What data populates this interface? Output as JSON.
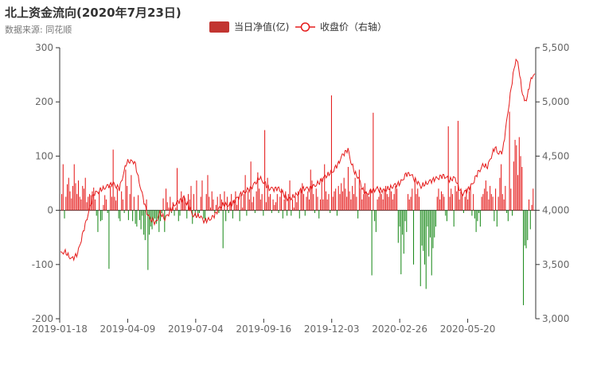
{
  "page": {
    "title": "北上资金流向(2020年7月23日)",
    "subtitle": "数据来源: 同花顺"
  },
  "colors": {
    "positive": "#e51b1b",
    "negative": "#1e8c1e",
    "price_line": "#e51b1b",
    "legend_bar": "#c23531"
  },
  "chart_data": {
    "type": "bar",
    "title": "北上资金流向(2020年7月23日)",
    "subtitle": "数据来源: 同花顺",
    "legend": {
      "position": "top-center"
    },
    "grid": false,
    "x_ticks": [
      "2019-01-18",
      "2019-04-09",
      "2019-07-04",
      "2019-09-16",
      "2019-12-03",
      "2020-02-26",
      "2020-05-20"
    ],
    "y_left": {
      "range": [
        -200,
        300
      ],
      "ticks": [
        -200,
        -100,
        0,
        100,
        200,
        300
      ]
    },
    "y_right": {
      "range": [
        3000,
        5500
      ],
      "ticks": [
        "3,000",
        "3,500",
        "4,000",
        "4,500",
        "5,000",
        "5,500"
      ]
    },
    "series": [
      {
        "name": "当日净值(亿)",
        "type": "bar",
        "axis": "left",
        "values": [
          30,
          85,
          -15,
          25,
          48,
          60,
          35,
          22,
          45,
          85,
          50,
          30,
          55,
          25,
          20,
          45,
          40,
          60,
          15,
          25,
          30,
          28,
          35,
          42,
          20,
          -10,
          -40,
          35,
          -20,
          -18,
          10,
          28,
          20,
          -5,
          -108,
          45,
          25,
          112,
          25,
          18,
          40,
          -15,
          -20,
          35,
          20,
          -5,
          75,
          45,
          -18,
          30,
          65,
          -20,
          25,
          -25,
          -30,
          28,
          -18,
          -35,
          -10,
          -45,
          -55,
          20,
          -110,
          -45,
          -30,
          -35,
          -20,
          -15,
          -25,
          -15,
          -40,
          -20,
          -5,
          22,
          -40,
          40,
          15,
          5,
          25,
          -5,
          15,
          -10,
          5,
          78,
          -20,
          -10,
          35,
          20,
          25,
          15,
          -15,
          30,
          20,
          45,
          -25,
          30,
          -10,
          55,
          -10,
          -5,
          25,
          55,
          -15,
          -20,
          30,
          65,
          25,
          5,
          35,
          20,
          -5,
          10,
          25,
          -5,
          30,
          20,
          -70,
          35,
          -20,
          25,
          -5,
          15,
          30,
          -15,
          20,
          35,
          10,
          25,
          -20,
          28,
          5,
          30,
          65,
          -10,
          35,
          20,
          90,
          15,
          25,
          -5,
          35,
          70,
          40,
          20,
          30,
          -10,
          148,
          15,
          60,
          25,
          30,
          -5,
          20,
          10,
          15,
          30,
          -5,
          25,
          40,
          -15,
          20,
          35,
          -10,
          30,
          55,
          -10,
          20,
          5,
          25,
          15,
          35,
          -15,
          40,
          50,
          30,
          -10,
          25,
          35,
          20,
          75,
          55,
          30,
          -5,
          40,
          25,
          -15,
          20,
          60,
          20,
          85,
          35,
          20,
          30,
          -5,
          212,
          25,
          35,
          40,
          -10,
          45,
          30,
          50,
          35,
          60,
          40,
          25,
          80,
          35,
          20,
          45,
          30,
          60,
          25,
          -15,
          75,
          40,
          20,
          30,
          50,
          35,
          30,
          25,
          40,
          -120,
          180,
          -20,
          -40,
          20,
          25,
          35,
          30,
          20,
          40,
          45,
          30,
          25,
          40,
          35,
          20,
          30,
          45,
          40,
          -60,
          -30,
          -118,
          -45,
          -80,
          -20,
          -40,
          30,
          20,
          25,
          40,
          -100,
          55,
          30,
          40,
          25,
          -140,
          -65,
          -75,
          -100,
          -145,
          -30,
          -85,
          -50,
          -120,
          -70,
          -50,
          -30,
          25,
          40,
          20,
          35,
          30,
          25,
          -10,
          -20,
          155,
          25,
          40,
          30,
          -30,
          45,
          35,
          165,
          20,
          35,
          30,
          -5,
          25,
          40,
          20,
          35,
          45,
          -10,
          30,
          -15,
          -40,
          -20,
          -5,
          -30,
          25,
          30,
          40,
          55,
          35,
          20,
          45,
          30,
          25,
          -20,
          40,
          -30,
          25,
          60,
          85,
          30,
          20,
          45,
          -5,
          -20,
          182,
          40,
          -10,
          90,
          130,
          120,
          65,
          135,
          100,
          80,
          -175,
          -65,
          -70,
          -55,
          20,
          -35,
          10,
          40
        ],
        "color_rule": "red when >= 0, green when < 0"
      },
      {
        "name": "收盘价（右轴）",
        "type": "line",
        "axis": "right",
        "anchors": [
          {
            "i": 0,
            "v": 3600
          },
          {
            "i": 4,
            "v": 3620
          },
          {
            "i": 12,
            "v": 3550
          },
          {
            "i": 18,
            "v": 3600
          },
          {
            "i": 27,
            "v": 3900
          },
          {
            "i": 35,
            "v": 4150
          },
          {
            "i": 45,
            "v": 4200
          },
          {
            "i": 55,
            "v": 4250
          },
          {
            "i": 62,
            "v": 4200
          },
          {
            "i": 70,
            "v": 4450
          },
          {
            "i": 78,
            "v": 4450
          },
          {
            "i": 86,
            "v": 4150
          },
          {
            "i": 92,
            "v": 3950
          },
          {
            "i": 100,
            "v": 3880
          },
          {
            "i": 105,
            "v": 3980
          },
          {
            "i": 110,
            "v": 3920
          },
          {
            "i": 120,
            "v": 4050
          },
          {
            "i": 130,
            "v": 4120
          },
          {
            "i": 140,
            "v": 3950
          },
          {
            "i": 146,
            "v": 3950
          },
          {
            "i": 152,
            "v": 3900
          },
          {
            "i": 160,
            "v": 3930
          },
          {
            "i": 170,
            "v": 4050
          },
          {
            "i": 180,
            "v": 4050
          },
          {
            "i": 190,
            "v": 4150
          },
          {
            "i": 200,
            "v": 4200
          },
          {
            "i": 210,
            "v": 4300
          },
          {
            "i": 220,
            "v": 4200
          },
          {
            "i": 230,
            "v": 4200
          },
          {
            "i": 240,
            "v": 4100
          },
          {
            "i": 250,
            "v": 4150
          },
          {
            "i": 255,
            "v": 4200
          },
          {
            "i": 262,
            "v": 4200
          },
          {
            "i": 272,
            "v": 4250
          },
          {
            "i": 280,
            "v": 4320
          },
          {
            "i": 286,
            "v": 4350
          },
          {
            "i": 292,
            "v": 4420
          },
          {
            "i": 298,
            "v": 4520
          },
          {
            "i": 303,
            "v": 4560
          },
          {
            "i": 306,
            "v": 4450
          },
          {
            "i": 310,
            "v": 4350
          },
          {
            "i": 314,
            "v": 4300
          },
          {
            "i": 318,
            "v": 4200
          },
          {
            "i": 322,
            "v": 4150
          },
          {
            "i": 328,
            "v": 4180
          },
          {
            "i": 334,
            "v": 4200
          },
          {
            "i": 340,
            "v": 4180
          },
          {
            "i": 346,
            "v": 4200
          },
          {
            "i": 352,
            "v": 4230
          },
          {
            "i": 358,
            "v": 4250
          },
          {
            "i": 364,
            "v": 4330
          },
          {
            "i": 368,
            "v": 4340
          },
          {
            "i": 374,
            "v": 4280
          },
          {
            "i": 380,
            "v": 4220
          },
          {
            "i": 386,
            "v": 4250
          },
          {
            "i": 392,
            "v": 4280
          },
          {
            "i": 398,
            "v": 4300
          },
          {
            "i": 404,
            "v": 4320
          },
          {
            "i": 410,
            "v": 4280
          },
          {
            "i": 416,
            "v": 4300
          },
          {
            "i": 420,
            "v": 4200
          },
          {
            "i": 424,
            "v": 4150
          },
          {
            "i": 428,
            "v": 4180
          },
          {
            "i": 434,
            "v": 4240
          },
          {
            "i": 440,
            "v": 4350
          },
          {
            "i": 446,
            "v": 4420
          },
          {
            "i": 450,
            "v": 4400
          },
          {
            "i": 454,
            "v": 4500
          },
          {
            "i": 458,
            "v": 4580
          },
          {
            "i": 462,
            "v": 4520
          },
          {
            "i": 466,
            "v": 4550
          },
          {
            "i": 470,
            "v": 4800
          },
          {
            "i": 473,
            "v": 5000
          },
          {
            "i": 477,
            "v": 5250
          },
          {
            "i": 480,
            "v": 5400
          },
          {
            "i": 483,
            "v": 5320
          },
          {
            "i": 486,
            "v": 5120
          },
          {
            "i": 489,
            "v": 5000
          },
          {
            "i": 492,
            "v": 5050
          },
          {
            "i": 495,
            "v": 5180
          },
          {
            "i": 498,
            "v": 5250
          },
          {
            "i": 500,
            "v": 5260
          }
        ]
      }
    ]
  }
}
